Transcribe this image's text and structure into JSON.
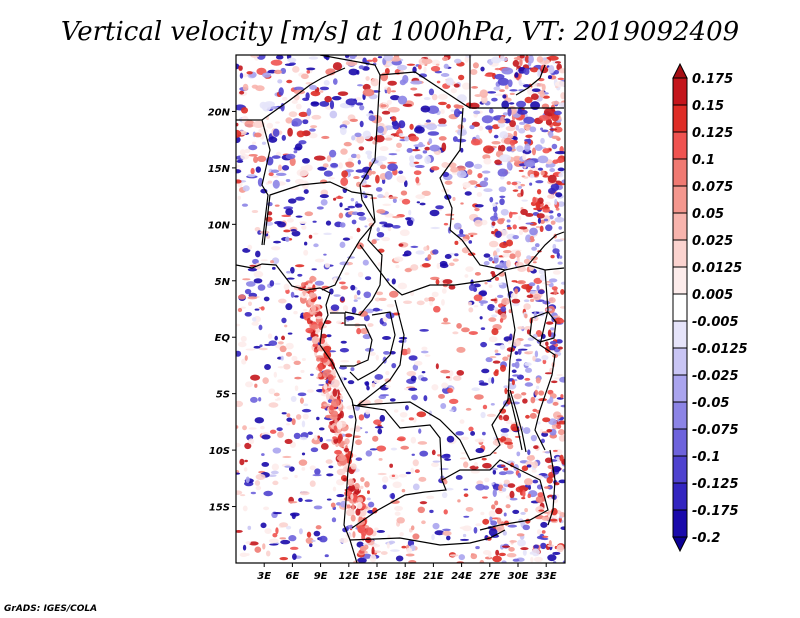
{
  "title": "Vertical velocity [m/s] at 1000hPa, VT: 2019092409",
  "credit": "GrADS: IGES/COLA",
  "map": {
    "lon_range": [
      0,
      35
    ],
    "lat_range": [
      -20,
      25
    ],
    "x_ticks": [
      "3E",
      "6E",
      "9E",
      "12E",
      "15E",
      "18E",
      "21E",
      "24E",
      "27E",
      "30E",
      "33E"
    ],
    "y_ticks": [
      "20N",
      "15N",
      "10N",
      "5N",
      "EQ",
      "5S",
      "10S",
      "15S"
    ]
  },
  "colorbar": {
    "labels": [
      "0.175",
      "0.15",
      "0.125",
      "0.1",
      "0.075",
      "0.05",
      "0.025",
      "0.0125",
      "0.005",
      "-0.005",
      "-0.0125",
      "-0.025",
      "-0.05",
      "-0.075",
      "-0.1",
      "-0.125",
      "-0.175",
      "-0.2"
    ],
    "colors": [
      "#a50f15",
      "#c4161c",
      "#de2d26",
      "#ef5350",
      "#f07a72",
      "#f4978e",
      "#f8b4ad",
      "#fbd3cf",
      "#fdeceb",
      "#ffffff",
      "#e6e4fa",
      "#c9c5f4",
      "#aaa4ee",
      "#8c84e6",
      "#6e63dc",
      "#4f42cf",
      "#3325c0",
      "#1a0aab",
      "#0c0096"
    ]
  }
}
